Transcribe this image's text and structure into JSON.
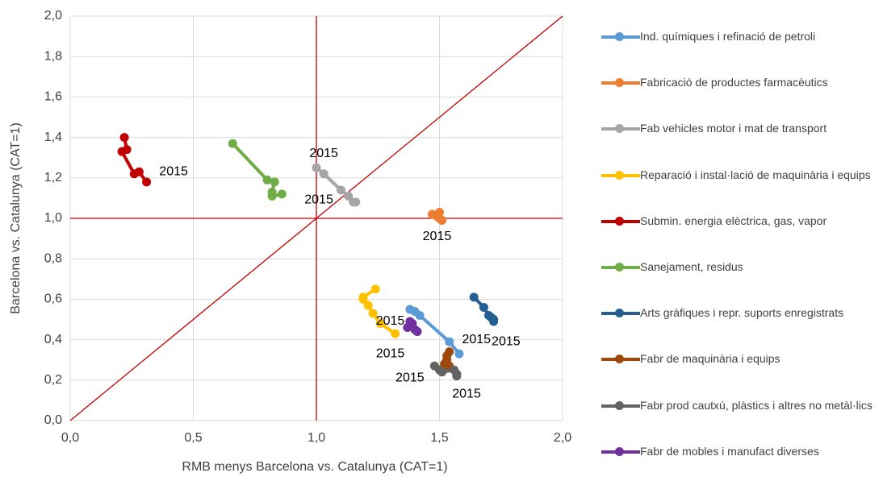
{
  "chart_data": {
    "type": "scatter",
    "xlabel": "RMB menys Barcelona vs. Catalunya (CAT=1)",
    "ylabel": "Barcelona vs. Catalunya (CAT=1)",
    "xlim": [
      0,
      2
    ],
    "ylim": [
      0,
      2
    ],
    "xticks": [
      {
        "value": 0,
        "label": "0,0"
      },
      {
        "value": 0.5,
        "label": "0,5"
      },
      {
        "value": 1,
        "label": "1,0"
      },
      {
        "value": 1.5,
        "label": "1,5"
      },
      {
        "value": 2,
        "label": "2,0"
      }
    ],
    "yticks": [
      {
        "value": 0,
        "label": "0,0"
      },
      {
        "value": 0.2,
        "label": "0,2"
      },
      {
        "value": 0.4,
        "label": "0,4"
      },
      {
        "value": 0.6,
        "label": "0,6"
      },
      {
        "value": 0.8,
        "label": "0,8"
      },
      {
        "value": 1,
        "label": "1,0"
      },
      {
        "value": 1.2,
        "label": "1,2"
      },
      {
        "value": 1.4,
        "label": "1,4"
      },
      {
        "value": 1.6,
        "label": "1,6"
      },
      {
        "value": 1.8,
        "label": "1,8"
      },
      {
        "value": 2,
        "label": "2,0"
      }
    ],
    "grid": true,
    "legend": "right",
    "reference_color": "#c00000",
    "hline": 1,
    "vline": 1,
    "diagonal": true,
    "series": [
      {
        "name": "Ind. químiques i refinació de petroli",
        "color": "#5b9bd5",
        "x": [
          1.38,
          1.4,
          1.42,
          1.54,
          1.58
        ],
        "y": [
          0.55,
          0.54,
          0.52,
          0.39,
          0.33
        ]
      },
      {
        "name": "Fabricació de productes farmacèutics",
        "color": "#ed7d31",
        "x": [
          1.47,
          1.49,
          1.5,
          1.5,
          1.51
        ],
        "y": [
          1.02,
          1.01,
          1.03,
          1.0,
          0.99
        ]
      },
      {
        "name": "Fab vehicles motor i mat de transport",
        "color": "#a5a5a5",
        "x": [
          1.0,
          1.03,
          1.1,
          1.13,
          1.15,
          1.16
        ],
        "y": [
          1.25,
          1.22,
          1.14,
          1.11,
          1.08,
          1.08
        ]
      },
      {
        "name": "Reparació i instal·lació de maquinària i equips",
        "color": "#ffc000",
        "x": [
          1.24,
          1.19,
          1.19,
          1.21,
          1.23,
          1.26,
          1.32
        ],
        "y": [
          0.65,
          0.61,
          0.6,
          0.57,
          0.53,
          0.48,
          0.43
        ]
      },
      {
        "name": "Submin. energia elèctrica, gas, vapor",
        "color": "#c00000",
        "x": [
          0.22,
          0.23,
          0.21,
          0.26,
          0.28,
          0.31
        ],
        "y": [
          1.4,
          1.34,
          1.33,
          1.22,
          1.23,
          1.18
        ]
      },
      {
        "name": "Sanejament, residus",
        "color": "#70ad47",
        "x": [
          0.66,
          0.8,
          0.83,
          0.82,
          0.82,
          0.86
        ],
        "y": [
          1.37,
          1.19,
          1.18,
          1.13,
          1.11,
          1.12
        ]
      },
      {
        "name": "Arts gràfiques i repr. suports enregistrats",
        "color": "#255e91",
        "x": [
          1.64,
          1.68,
          1.7,
          1.71,
          1.72,
          1.72
        ],
        "y": [
          0.61,
          0.56,
          0.52,
          0.51,
          0.49,
          0.5
        ]
      },
      {
        "name": "Fabr de maquinària i equips",
        "color": "#9e480e",
        "x": [
          1.54,
          1.53,
          1.53,
          1.52,
          1.54,
          1.51
        ],
        "y": [
          0.34,
          0.32,
          0.3,
          0.28,
          0.27,
          0.25
        ]
      },
      {
        "name": "Fabr prod cautxú, plàstics i altres no metàl·lics",
        "color": "#636363",
        "x": [
          1.48,
          1.5,
          1.51,
          1.56,
          1.57,
          1.57
        ],
        "y": [
          0.27,
          0.25,
          0.24,
          0.25,
          0.23,
          0.22
        ]
      },
      {
        "name": "Fabr de mobles i manufact diverses",
        "color": "#7030a0",
        "x": [
          1.37,
          1.39,
          1.38,
          1.4,
          1.41
        ],
        "y": [
          0.46,
          0.48,
          0.49,
          0.45,
          0.44
        ]
      }
    ],
    "annotations": [
      {
        "text": "2015",
        "x": 0.42,
        "y": 1.23
      },
      {
        "text": "2015",
        "x": 1.01,
        "y": 1.09
      },
      {
        "text": "2015",
        "x": 1.03,
        "y": 1.32
      },
      {
        "text": "2015",
        "x": 1.49,
        "y": 0.91
      },
      {
        "text": "2015",
        "x": 1.65,
        "y": 0.4
      },
      {
        "text": "2015",
        "x": 1.77,
        "y": 0.39
      },
      {
        "text": "2015",
        "x": 1.3,
        "y": 0.33
      },
      {
        "text": "2015",
        "x": 1.3,
        "y": 0.49
      },
      {
        "text": "2015",
        "x": 1.38,
        "y": 0.21
      },
      {
        "text": "2015",
        "x": 1.61,
        "y": 0.13
      }
    ]
  }
}
